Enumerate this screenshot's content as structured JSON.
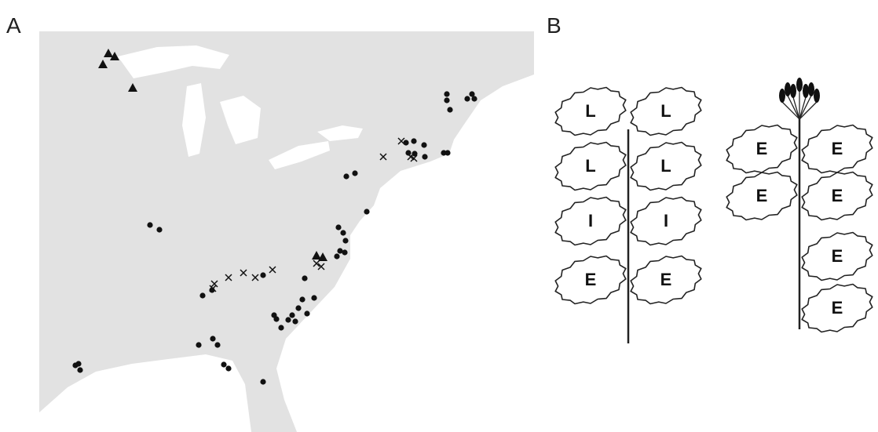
{
  "panels": [
    {
      "label": "A"
    },
    {
      "label": "B",
      "plants": [
        {
          "leaves": [
            "L",
            "L",
            "L",
            "L",
            "I",
            "I",
            "E",
            "E"
          ]
        },
        {
          "leaves": [
            "E",
            "E",
            "E",
            "E",
            "E",
            "E"
          ]
        }
      ]
    }
  ]
}
